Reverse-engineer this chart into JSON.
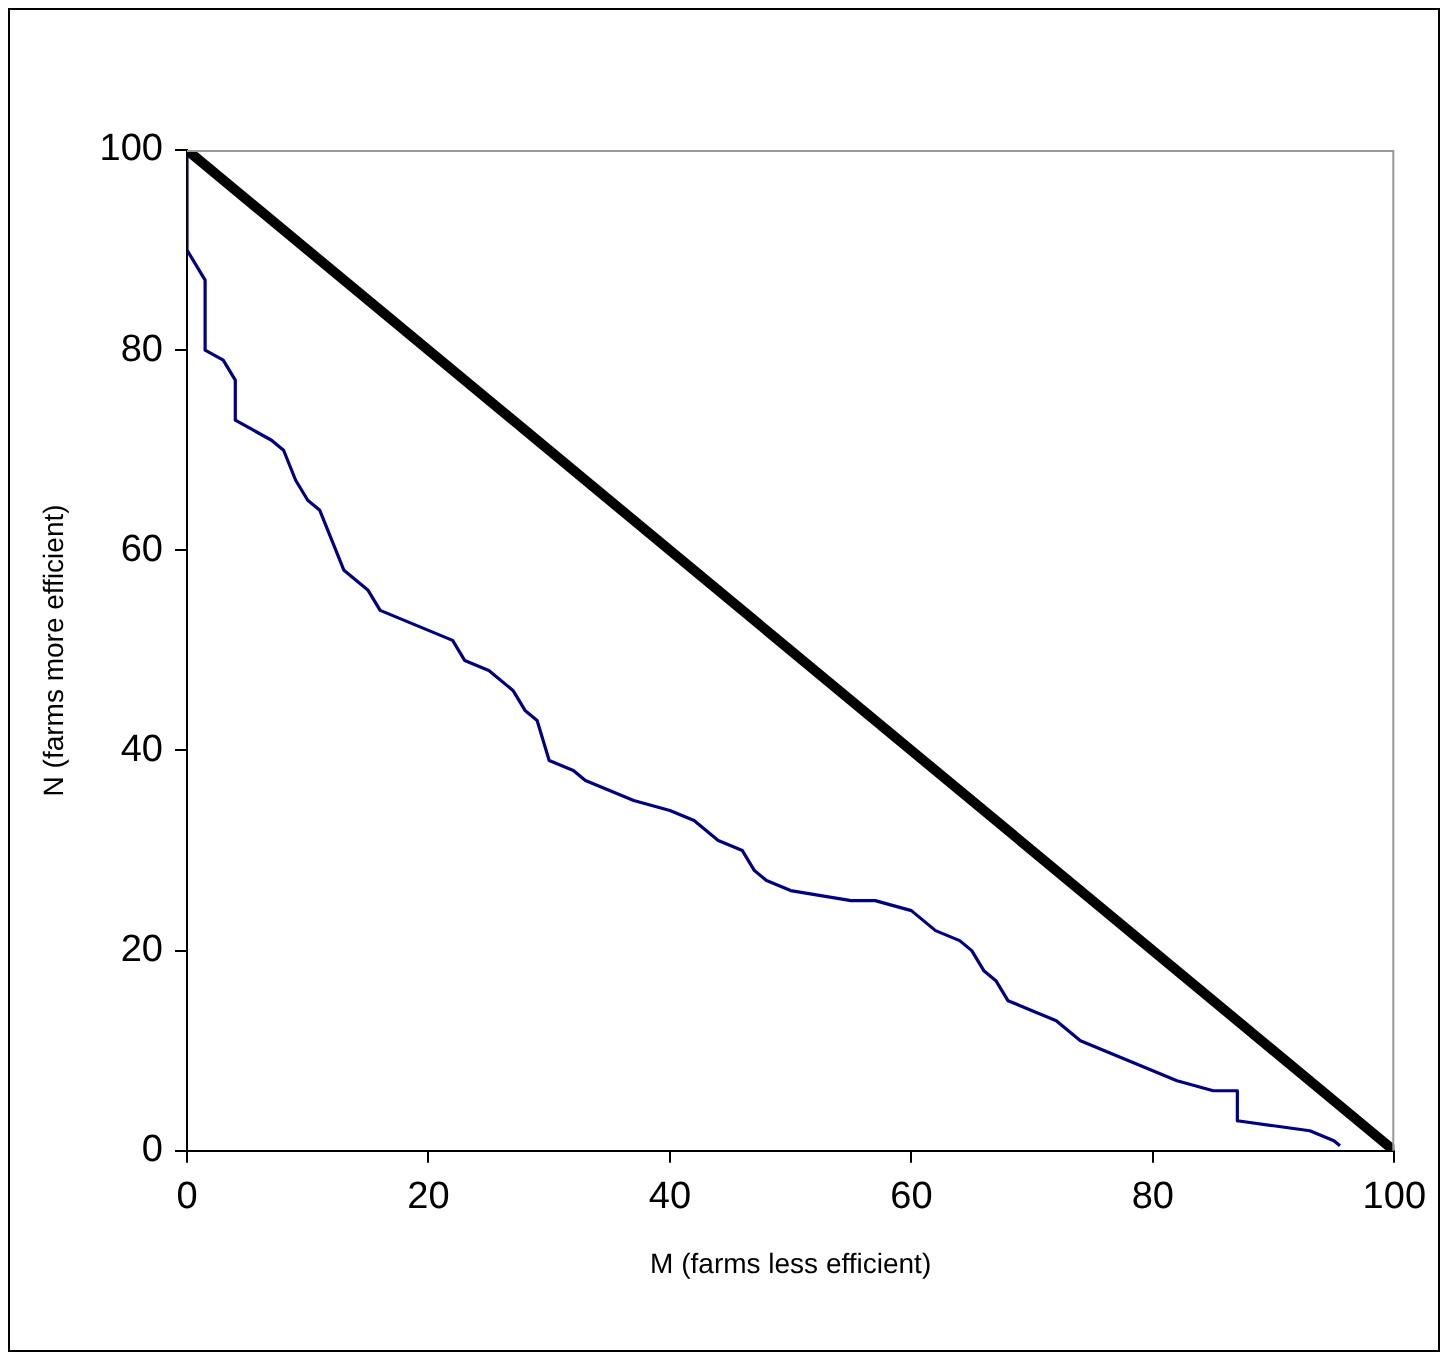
{
  "chart_data": {
    "type": "line",
    "xlabel": "M (farms less efficient)",
    "ylabel": "N (farms more efficient)",
    "xlim": [
      0,
      100
    ],
    "ylim": [
      0,
      100
    ],
    "xticks": [
      0,
      20,
      40,
      60,
      80,
      100
    ],
    "yticks": [
      0,
      20,
      40,
      60,
      80,
      100
    ],
    "grid": false,
    "legend": false,
    "marker": "none",
    "line_style": "solid",
    "series": [
      {
        "color": "#000000",
        "x": [
          0,
          100
        ],
        "values": [
          100,
          0
        ]
      },
      {
        "color": "#000080",
        "x": [
          0,
          0,
          1,
          1.5,
          1.5,
          3,
          4,
          4,
          5.5,
          7,
          8,
          9,
          10,
          11,
          12,
          13,
          15,
          16,
          18,
          20,
          22,
          23,
          25,
          27,
          28,
          29,
          30,
          32,
          33,
          35,
          37,
          40,
          42,
          44,
          46,
          47,
          48,
          50,
          55,
          57,
          60,
          61,
          62,
          64,
          65,
          66,
          67,
          68,
          70,
          72,
          74,
          76,
          78,
          80,
          82,
          85,
          87,
          87,
          90,
          93,
          95,
          95.5
        ],
        "values": [
          100,
          90,
          88,
          87,
          80,
          79,
          77,
          73,
          72,
          71,
          70,
          67,
          65,
          64,
          61,
          58,
          56,
          54,
          53,
          52,
          51,
          49,
          48,
          46,
          44,
          43,
          39,
          38,
          37,
          36,
          35,
          34,
          33,
          31,
          30,
          28,
          27,
          26,
          25,
          25,
          24,
          23,
          22,
          21,
          20,
          18,
          17,
          15,
          14,
          13,
          11,
          10,
          9,
          8,
          7,
          6,
          6,
          3,
          2.5,
          2,
          1,
          0.5
        ]
      }
    ]
  }
}
